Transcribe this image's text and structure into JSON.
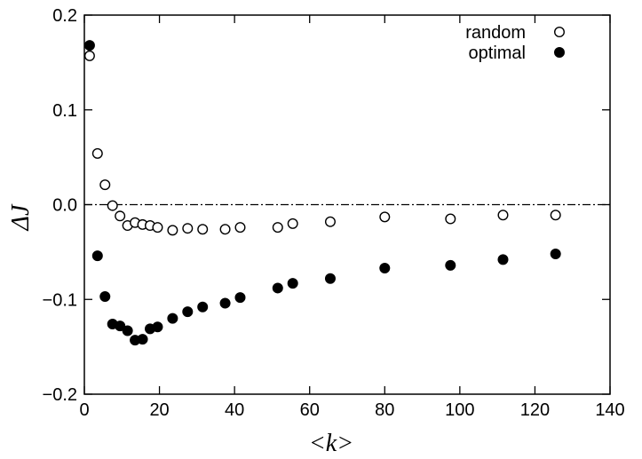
{
  "chart_data": {
    "type": "scatter",
    "xlabel": "<k>",
    "ylabel": "ΔJ",
    "xlim": [
      0,
      140
    ],
    "ylim": [
      -0.2,
      0.2
    ],
    "xticks": [
      0,
      20,
      40,
      60,
      80,
      100,
      120,
      140
    ],
    "yticks": [
      -0.2,
      -0.1,
      0.0,
      0.1,
      0.2
    ],
    "xtick_labels": [
      "0",
      "20",
      "40",
      "60",
      "80",
      "100",
      "120",
      "140"
    ],
    "ytick_labels": [
      "−0.2",
      "−0.1",
      "0.0",
      "0.1",
      "0.2"
    ],
    "reference_line": {
      "y": 0.0,
      "style": "dash-dot"
    },
    "grid": false,
    "legend_position": "top-right",
    "series": [
      {
        "name": "random",
        "marker": "open-circle",
        "color": "#000000",
        "points": [
          [
            1.4,
            0.157
          ],
          [
            3.5,
            0.054
          ],
          [
            5.5,
            0.021
          ],
          [
            7.5,
            -0.001
          ],
          [
            9.5,
            -0.012
          ],
          [
            11.5,
            -0.022
          ],
          [
            13.5,
            -0.019
          ],
          [
            15.5,
            -0.021
          ],
          [
            17.5,
            -0.022
          ],
          [
            19.5,
            -0.024
          ],
          [
            23.5,
            -0.027
          ],
          [
            27.5,
            -0.025
          ],
          [
            31.5,
            -0.026
          ],
          [
            37.5,
            -0.026
          ],
          [
            41.5,
            -0.024
          ],
          [
            51.5,
            -0.024
          ],
          [
            55.5,
            -0.02
          ],
          [
            65.5,
            -0.018
          ],
          [
            80,
            -0.013
          ],
          [
            97.5,
            -0.015
          ],
          [
            111.5,
            -0.011
          ],
          [
            125.5,
            -0.011
          ]
        ]
      },
      {
        "name": "optimal",
        "marker": "filled-circle",
        "color": "#000000",
        "points": [
          [
            1.4,
            0.168
          ],
          [
            3.5,
            -0.054
          ],
          [
            5.5,
            -0.097
          ],
          [
            7.5,
            -0.126
          ],
          [
            9.5,
            -0.128
          ],
          [
            11.5,
            -0.133
          ],
          [
            13.5,
            -0.143
          ],
          [
            15.5,
            -0.142
          ],
          [
            17.5,
            -0.131
          ],
          [
            19.5,
            -0.129
          ],
          [
            23.5,
            -0.12
          ],
          [
            27.5,
            -0.113
          ],
          [
            31.5,
            -0.108
          ],
          [
            37.5,
            -0.104
          ],
          [
            41.5,
            -0.098
          ],
          [
            51.5,
            -0.088
          ],
          [
            55.5,
            -0.083
          ],
          [
            65.5,
            -0.078
          ],
          [
            80,
            -0.067
          ],
          [
            97.5,
            -0.064
          ],
          [
            111.5,
            -0.058
          ],
          [
            125.5,
            -0.052
          ]
        ]
      }
    ]
  }
}
